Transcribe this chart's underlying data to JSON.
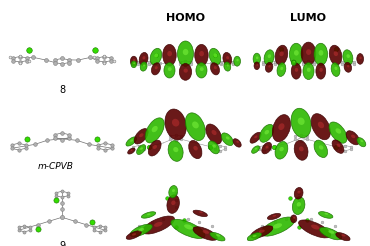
{
  "title_homo": "HOMO",
  "title_lumo": "LUMO",
  "label_8": "8",
  "label_mcpvb": "m-CPVB",
  "label_9": "9",
  "bg_color": "#ffffff",
  "text_color": "#000000",
  "header_fontsize": 8,
  "label_fontsize": 7,
  "figwidth": 3.7,
  "figheight": 2.46,
  "dpi": 100,
  "green_lobe": "#2db800",
  "red_lobe": "#5a0000",
  "green_lobe_edge": "#1a7000",
  "red_lobe_edge": "#3a0000",
  "green_lobe_highlight": "#88ff44",
  "red_lobe_highlight": "#cc3333",
  "atom_gray": "#b0b0b0",
  "atom_edge": "#808080",
  "atom_white": "#e8e8e8",
  "cl_green": "#33dd00",
  "cl_edge": "#1a7700",
  "bond_color": "#707070"
}
